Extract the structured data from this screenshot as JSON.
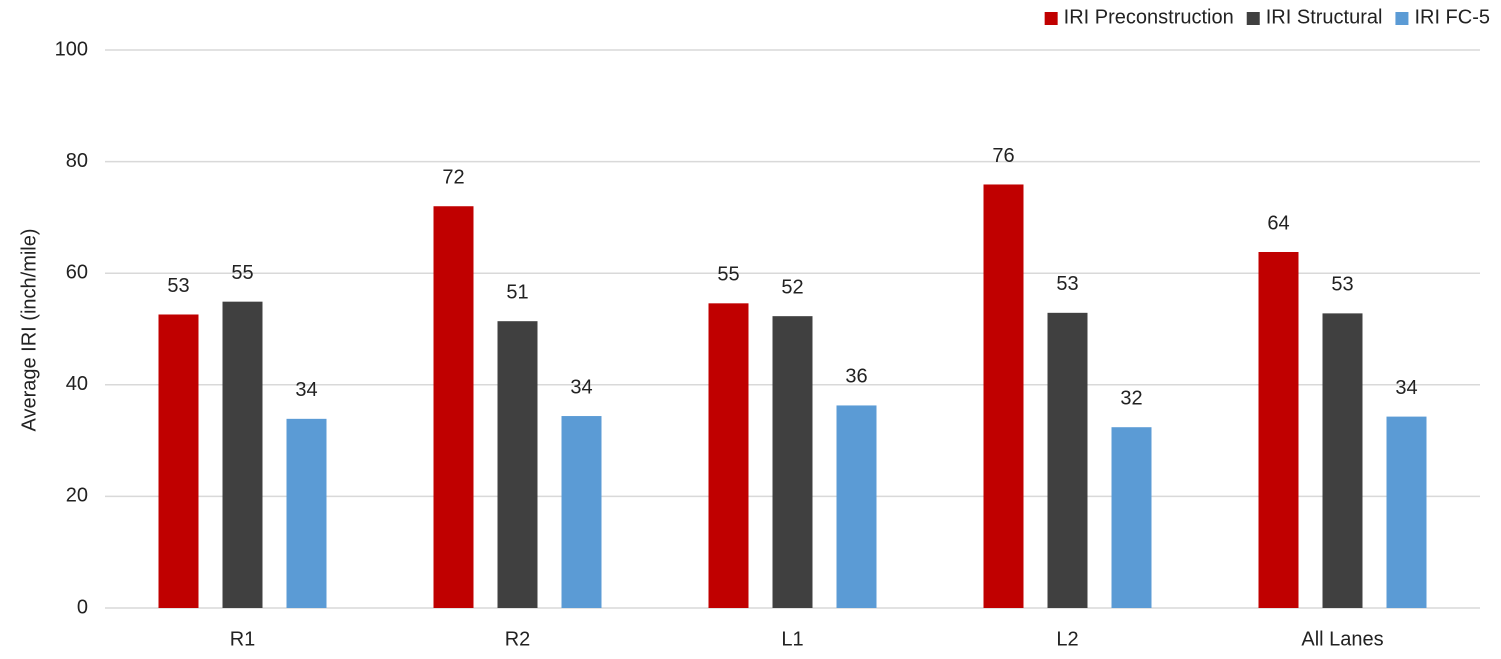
{
  "chart_data": {
    "type": "bar",
    "y_label": "Average IRI (inch/mile)",
    "categories": [
      "R1",
      "R2",
      "L1",
      "L2",
      "All Lanes"
    ],
    "series": [
      {
        "name": "IRI Preconstruction",
        "color": "#c00000",
        "values": [
          52.6,
          72.0,
          54.6,
          75.9,
          63.8
        ],
        "value_labels": [
          "53",
          "72",
          "55",
          "76",
          "64"
        ]
      },
      {
        "name": "IRI Structural",
        "color": "#404040",
        "values": [
          54.9,
          51.4,
          52.3,
          52.9,
          52.8
        ],
        "value_labels": [
          "55",
          "51",
          "52",
          "53",
          "53"
        ]
      },
      {
        "name": "IRI FC-5",
        "color": "#5b9bd5",
        "values": [
          33.9,
          34.4,
          36.3,
          32.4,
          34.3
        ],
        "value_labels": [
          "34",
          "34",
          "36",
          "32",
          "34"
        ]
      }
    ],
    "ylim": [
      0,
      100
    ],
    "yticks": [
      0,
      20,
      40,
      60,
      80,
      100
    ],
    "grid": true,
    "legend": "top-right"
  }
}
